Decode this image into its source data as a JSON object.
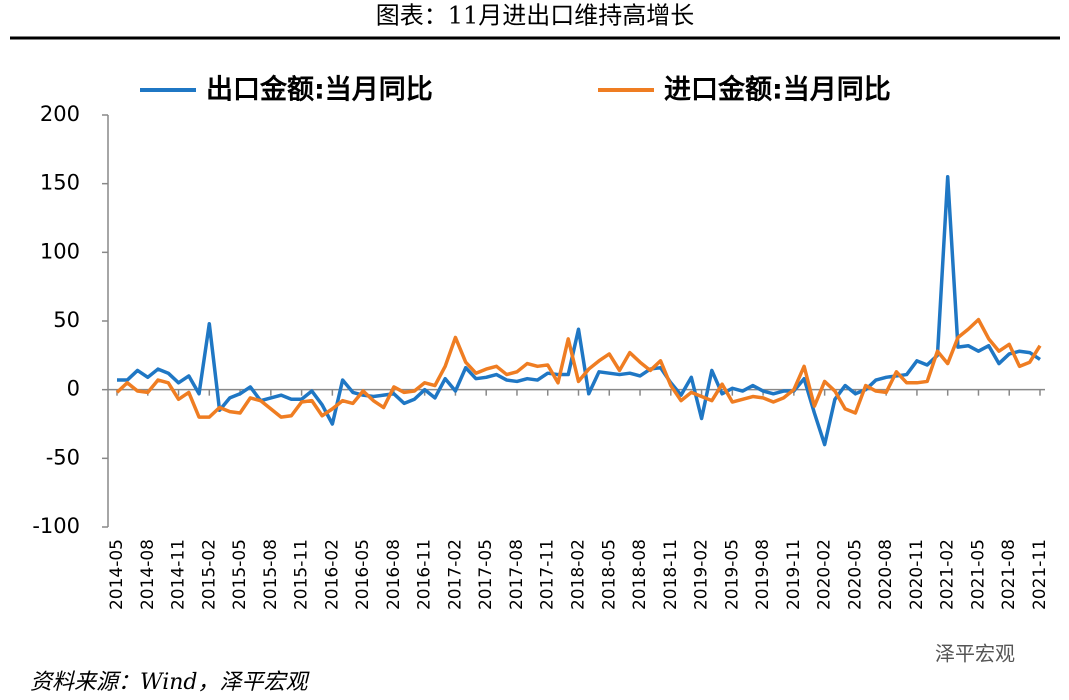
{
  "title": "图表：11月进出口维持高增长",
  "source": "资料来源：Wind，泽平宏观",
  "watermark": "泽平宏观",
  "chart_data": {
    "type": "line",
    "categories": [
      "2014-05",
      null,
      null,
      "2014-08",
      null,
      null,
      "2014-11",
      null,
      null,
      "2015-02",
      null,
      null,
      "2015-05",
      null,
      null,
      "2015-08",
      null,
      null,
      "2015-11",
      null,
      null,
      "2016-02",
      null,
      null,
      "2016-05",
      null,
      null,
      "2016-08",
      null,
      null,
      "2016-11",
      null,
      null,
      "2017-02",
      null,
      null,
      "2017-05",
      null,
      null,
      "2017-08",
      null,
      null,
      "2017-11",
      null,
      null,
      "2018-02",
      null,
      null,
      "2018-05",
      null,
      null,
      "2018-08",
      null,
      null,
      "2018-11",
      null,
      null,
      "2019-02",
      null,
      null,
      "2019-05",
      null,
      null,
      "2019-08",
      null,
      null,
      "2019-11",
      null,
      null,
      "2020-02",
      null,
      null,
      "2020-05",
      null,
      null,
      "2020-08",
      null,
      null,
      "2020-11",
      null,
      null,
      "2021-02",
      null,
      null,
      "2021-05",
      null,
      null,
      "2021-08",
      null,
      null,
      "2021-11"
    ],
    "series": [
      {
        "name": "出口金额:当月同比",
        "color": "#1f77c4",
        "values": [
          7,
          7,
          14,
          9,
          15,
          12,
          5,
          10,
          -3,
          48,
          -15,
          -6,
          -3,
          2,
          -8,
          -6,
          -4,
          -7,
          -7,
          -1,
          -11,
          -25,
          7,
          -2,
          -4,
          -5,
          -4,
          -3,
          -10,
          -7,
          0,
          -6,
          8,
          -1,
          16,
          8,
          9,
          11,
          7,
          6,
          8,
          7,
          12,
          11,
          11,
          44,
          -3,
          13,
          12,
          11,
          12,
          10,
          15,
          16,
          5,
          -4,
          9,
          -21,
          14,
          -3,
          1,
          -1,
          3,
          -1,
          -3,
          -1,
          -1,
          8,
          -17,
          -40,
          -7,
          3,
          -3,
          0,
          7,
          9,
          10,
          11,
          21,
          18,
          25,
          155,
          31,
          32,
          28,
          32,
          19,
          26,
          28,
          27,
          22
        ]
      },
      {
        "name": "进口金额:当月同比",
        "color": "#ef7d22",
        "values": [
          -2,
          5,
          -1,
          -2,
          7,
          5,
          -7,
          -2,
          -20,
          -20,
          -13,
          -16,
          -17,
          -6,
          -8,
          -14,
          -20,
          -19,
          -9,
          -8,
          -19,
          -14,
          -8,
          -10,
          -1,
          -8,
          -13,
          2,
          -2,
          -1,
          5,
          3,
          17,
          38,
          20,
          12,
          15,
          17,
          11,
          13,
          19,
          17,
          18,
          5,
          37,
          6,
          15,
          21,
          26,
          14,
          27,
          20,
          14,
          21,
          3,
          -8,
          -2,
          -5,
          -8,
          4,
          -9,
          -7,
          -5,
          -6,
          -9,
          -6,
          0,
          17,
          -12,
          6,
          -1,
          -14,
          -17,
          3,
          -1,
          -2,
          13,
          5,
          5,
          6,
          28,
          19,
          38,
          44,
          51,
          37,
          28,
          33,
          17,
          20,
          32
        ]
      }
    ],
    "ylim": [
      -100,
      200
    ],
    "yticks": [
      -100,
      -50,
      0,
      50,
      100,
      150,
      200
    ],
    "grid": false
  }
}
